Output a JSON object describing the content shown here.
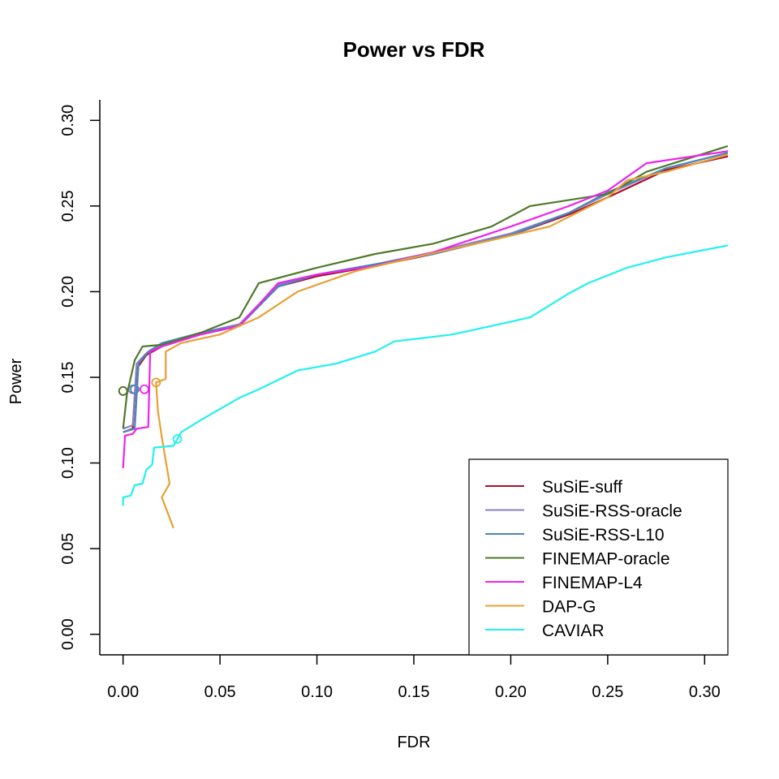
{
  "chart_data": {
    "type": "line",
    "title": "Power vs FDR",
    "xlabel": "FDR",
    "ylabel": "Power",
    "xlim": [
      -0.012,
      0.312
    ],
    "ylim": [
      -0.012,
      0.312
    ],
    "x_ticks": [
      "0.00",
      "0.05",
      "0.10",
      "0.15",
      "0.20",
      "0.25",
      "0.30"
    ],
    "y_ticks": [
      "0.00",
      "0.05",
      "0.10",
      "0.15",
      "0.20",
      "0.25",
      "0.30"
    ],
    "x_tick_values": [
      0,
      0.05,
      0.1,
      0.15,
      0.2,
      0.25,
      0.3
    ],
    "y_tick_values": [
      0,
      0.05,
      0.1,
      0.15,
      0.2,
      0.25,
      0.3
    ],
    "grid": false,
    "legend_position": "bottom-right",
    "series": [
      {
        "name": "SuSiE-suff",
        "color": "#a8102c",
        "marker": [
          0.0,
          0.142
        ],
        "points": [
          [
            0.0,
            0.118
          ],
          [
            0.005,
            0.12
          ],
          [
            0.007,
            0.155
          ],
          [
            0.012,
            0.163
          ],
          [
            0.02,
            0.168
          ],
          [
            0.04,
            0.175
          ],
          [
            0.06,
            0.18
          ],
          [
            0.08,
            0.203
          ],
          [
            0.1,
            0.209
          ],
          [
            0.13,
            0.215
          ],
          [
            0.16,
            0.222
          ],
          [
            0.2,
            0.233
          ],
          [
            0.23,
            0.245
          ],
          [
            0.25,
            0.255
          ],
          [
            0.28,
            0.271
          ],
          [
            0.312,
            0.279
          ]
        ]
      },
      {
        "name": "SuSiE-RSS-oracle",
        "color": "#8a7fc0",
        "marker": [
          0.005,
          0.143
        ],
        "points": [
          [
            0.0,
            0.12
          ],
          [
            0.005,
            0.122
          ],
          [
            0.007,
            0.158
          ],
          [
            0.012,
            0.164
          ],
          [
            0.02,
            0.169
          ],
          [
            0.04,
            0.176
          ],
          [
            0.06,
            0.181
          ],
          [
            0.08,
            0.204
          ],
          [
            0.1,
            0.21
          ],
          [
            0.13,
            0.216
          ],
          [
            0.16,
            0.223
          ],
          [
            0.2,
            0.234
          ],
          [
            0.23,
            0.246
          ],
          [
            0.25,
            0.257
          ],
          [
            0.28,
            0.272
          ],
          [
            0.312,
            0.281
          ]
        ]
      },
      {
        "name": "SuSiE-RSS-L10",
        "color": "#4a86b8",
        "marker": [
          0.006,
          0.143
        ],
        "points": [
          [
            0.0,
            0.118
          ],
          [
            0.006,
            0.12
          ],
          [
            0.008,
            0.158
          ],
          [
            0.013,
            0.165
          ],
          [
            0.02,
            0.17
          ],
          [
            0.04,
            0.176
          ],
          [
            0.06,
            0.18
          ],
          [
            0.08,
            0.203
          ],
          [
            0.1,
            0.21
          ],
          [
            0.13,
            0.216
          ],
          [
            0.16,
            0.222
          ],
          [
            0.2,
            0.233
          ],
          [
            0.23,
            0.246
          ],
          [
            0.25,
            0.258
          ],
          [
            0.28,
            0.272
          ],
          [
            0.312,
            0.281
          ]
        ]
      },
      {
        "name": "FINEMAP-oracle",
        "color": "#4e7a2a",
        "marker": [
          0.0,
          0.142
        ],
        "points": [
          [
            0.0,
            0.12
          ],
          [
            0.002,
            0.14
          ],
          [
            0.006,
            0.16
          ],
          [
            0.01,
            0.168
          ],
          [
            0.02,
            0.169
          ],
          [
            0.04,
            0.176
          ],
          [
            0.06,
            0.185
          ],
          [
            0.07,
            0.205
          ],
          [
            0.1,
            0.214
          ],
          [
            0.13,
            0.222
          ],
          [
            0.16,
            0.228
          ],
          [
            0.19,
            0.238
          ],
          [
            0.21,
            0.25
          ],
          [
            0.25,
            0.257
          ],
          [
            0.27,
            0.27
          ],
          [
            0.312,
            0.285
          ]
        ]
      },
      {
        "name": "FINEMAP-L4",
        "color": "#ee22ee",
        "marker": [
          0.011,
          0.143
        ],
        "points": [
          [
            0.0,
            0.097
          ],
          [
            0.001,
            0.116
          ],
          [
            0.005,
            0.117
          ],
          [
            0.007,
            0.12
          ],
          [
            0.013,
            0.121
          ],
          [
            0.014,
            0.165
          ],
          [
            0.02,
            0.168
          ],
          [
            0.04,
            0.175
          ],
          [
            0.06,
            0.18
          ],
          [
            0.08,
            0.205
          ],
          [
            0.1,
            0.21
          ],
          [
            0.13,
            0.215
          ],
          [
            0.16,
            0.223
          ],
          [
            0.2,
            0.238
          ],
          [
            0.23,
            0.25
          ],
          [
            0.25,
            0.259
          ],
          [
            0.27,
            0.275
          ],
          [
            0.312,
            0.282
          ]
        ]
      },
      {
        "name": "DAP-G",
        "color": "#e8a033",
        "marker": [
          0.017,
          0.147
        ],
        "points": [
          [
            0.026,
            0.062
          ],
          [
            0.02,
            0.08
          ],
          [
            0.024,
            0.088
          ],
          [
            0.02,
            0.115
          ],
          [
            0.018,
            0.13
          ],
          [
            0.017,
            0.147
          ],
          [
            0.022,
            0.149
          ],
          [
            0.022,
            0.165
          ],
          [
            0.03,
            0.17
          ],
          [
            0.05,
            0.175
          ],
          [
            0.07,
            0.185
          ],
          [
            0.09,
            0.2
          ],
          [
            0.12,
            0.212
          ],
          [
            0.15,
            0.22
          ],
          [
            0.19,
            0.23
          ],
          [
            0.22,
            0.238
          ],
          [
            0.25,
            0.255
          ],
          [
            0.26,
            0.265
          ],
          [
            0.28,
            0.27
          ],
          [
            0.312,
            0.28
          ]
        ]
      },
      {
        "name": "CAVIAR",
        "color": "#22f0f0",
        "marker": [
          0.028,
          0.114
        ],
        "points": [
          [
            0.0,
            0.075
          ],
          [
            0.0,
            0.08
          ],
          [
            0.004,
            0.081
          ],
          [
            0.006,
            0.087
          ],
          [
            0.01,
            0.088
          ],
          [
            0.012,
            0.096
          ],
          [
            0.015,
            0.099
          ],
          [
            0.016,
            0.109
          ],
          [
            0.026,
            0.11
          ],
          [
            0.03,
            0.118
          ],
          [
            0.04,
            0.125
          ],
          [
            0.06,
            0.138
          ],
          [
            0.07,
            0.143
          ],
          [
            0.09,
            0.154
          ],
          [
            0.11,
            0.158
          ],
          [
            0.13,
            0.165
          ],
          [
            0.14,
            0.171
          ],
          [
            0.17,
            0.175
          ],
          [
            0.19,
            0.18
          ],
          [
            0.21,
            0.185
          ],
          [
            0.23,
            0.199
          ],
          [
            0.24,
            0.205
          ],
          [
            0.26,
            0.214
          ],
          [
            0.28,
            0.22
          ],
          [
            0.312,
            0.227
          ]
        ]
      }
    ]
  }
}
